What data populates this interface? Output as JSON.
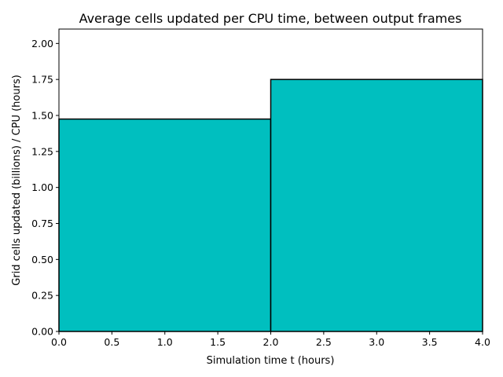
{
  "chart_data": {
    "type": "bar",
    "title": "Average cells updated per CPU time, between output frames",
    "xlabel": "Simulation time t (hours)",
    "ylabel": "Grid cells updated (billions) / CPU (hours)",
    "bars": [
      {
        "x_start": 0.0,
        "x_end": 2.0,
        "value": 1.475
      },
      {
        "x_start": 2.0,
        "x_end": 4.0,
        "value": 1.75
      }
    ],
    "xlim": [
      0.0,
      4.0
    ],
    "ylim": [
      0.0,
      2.1
    ],
    "xticks": [
      0.0,
      0.5,
      1.0,
      1.5,
      2.0,
      2.5,
      3.0,
      3.5,
      4.0
    ],
    "xtick_labels": [
      "0.0",
      "0.5",
      "1.0",
      "1.5",
      "2.0",
      "2.5",
      "3.0",
      "3.5",
      "4.0"
    ],
    "yticks": [
      0.0,
      0.25,
      0.5,
      0.75,
      1.0,
      1.25,
      1.5,
      1.75,
      2.0
    ],
    "ytick_labels": [
      "0.00",
      "0.25",
      "0.50",
      "0.75",
      "1.00",
      "1.25",
      "1.50",
      "1.75",
      "2.00"
    ],
    "grid": false,
    "legend": false,
    "colors": {
      "bar_fill": "#00bfbf",
      "bar_edge": "#000000"
    }
  }
}
